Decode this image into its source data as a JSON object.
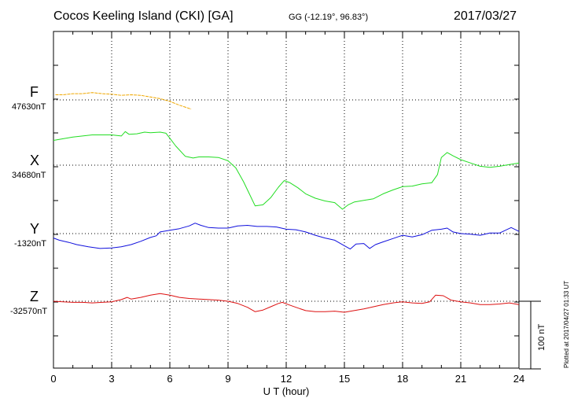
{
  "header": {
    "title": "Cocos Keeling Island (CKI)  [GA]",
    "coords": "GG (-12.19°,  96.83°)",
    "date": "2017/03/27"
  },
  "footer": {
    "plotted": "Plotted at 2017/04/27 01:33 UT"
  },
  "colors": {
    "F": "#f0a800",
    "X": "#22dd22",
    "Y": "#1010dd",
    "Z": "#dd1010",
    "grid": "#000000"
  },
  "chart_data": {
    "type": "line",
    "xlabel": "U T (hour)",
    "xlim": [
      0,
      24
    ],
    "xticks": [
      "0",
      "3",
      "6",
      "9",
      "12",
      "15",
      "18",
      "21",
      "24"
    ],
    "grid": true,
    "scale_bar": {
      "label": "100 nT",
      "nT": 100
    },
    "series": [
      {
        "name": "F",
        "baseline_label": "47630nT",
        "baseline_nT": 47630,
        "points": [
          [
            0.1,
            -5
          ],
          [
            0.5,
            -5
          ],
          [
            1,
            -7
          ],
          [
            1.5,
            -7
          ],
          [
            2,
            -9
          ],
          [
            2.5,
            -7
          ],
          [
            3,
            -6
          ],
          [
            3.5,
            -4
          ],
          [
            4,
            -5
          ],
          [
            4.5,
            -4
          ],
          [
            5,
            -1
          ],
          [
            5.5,
            2
          ],
          [
            6,
            7
          ],
          [
            6.5,
            14
          ],
          [
            7.1,
            21
          ]
        ]
      },
      {
        "name": "X",
        "baseline_label": "34680nT",
        "baseline_nT": 34680,
        "points": [
          [
            0,
            -45
          ],
          [
            0.5,
            -48
          ],
          [
            1,
            -51
          ],
          [
            1.5,
            -53
          ],
          [
            2,
            -55
          ],
          [
            2.5,
            -55
          ],
          [
            3,
            -55
          ],
          [
            3.5,
            -53
          ],
          [
            3.7,
            -61
          ],
          [
            3.9,
            -56
          ],
          [
            4.3,
            -57
          ],
          [
            4.7,
            -60
          ],
          [
            5,
            -59
          ],
          [
            5.5,
            -60
          ],
          [
            5.8,
            -58
          ],
          [
            6,
            -49
          ],
          [
            6.3,
            -35
          ],
          [
            6.8,
            -16
          ],
          [
            7.2,
            -13
          ],
          [
            7.5,
            -15
          ],
          [
            8,
            -15
          ],
          [
            8.5,
            -14
          ],
          [
            9,
            -8
          ],
          [
            9.4,
            5
          ],
          [
            9.8,
            30
          ],
          [
            10.1,
            52
          ],
          [
            10.4,
            74
          ],
          [
            10.8,
            72
          ],
          [
            11.2,
            59
          ],
          [
            11.6,
            40
          ],
          [
            11.9,
            28
          ],
          [
            12.2,
            32
          ],
          [
            12.6,
            41
          ],
          [
            13,
            52
          ],
          [
            13.5,
            60
          ],
          [
            14,
            65
          ],
          [
            14.5,
            68
          ],
          [
            14.9,
            80
          ],
          [
            15.2,
            72
          ],
          [
            15.5,
            67
          ],
          [
            16,
            64
          ],
          [
            16.5,
            61
          ],
          [
            17,
            52
          ],
          [
            17.5,
            45
          ],
          [
            18,
            39
          ],
          [
            18.5,
            38
          ],
          [
            19,
            34
          ],
          [
            19.5,
            32
          ],
          [
            19.8,
            17
          ],
          [
            20,
            -14
          ],
          [
            20.3,
            -23
          ],
          [
            20.6,
            -17
          ],
          [
            21,
            -10
          ],
          [
            21.5,
            -4
          ],
          [
            22,
            2
          ],
          [
            22.5,
            4
          ],
          [
            23,
            2
          ],
          [
            23.5,
            -1
          ],
          [
            24,
            -4
          ]
        ]
      },
      {
        "name": "Y",
        "baseline_label": "-1320nT",
        "baseline_nT": -1320,
        "points": [
          [
            0,
            8
          ],
          [
            0.3,
            12
          ],
          [
            0.8,
            16
          ],
          [
            1.2,
            20
          ],
          [
            1.8,
            24
          ],
          [
            2.4,
            27
          ],
          [
            3,
            26
          ],
          [
            3.5,
            24
          ],
          [
            4,
            20
          ],
          [
            4.5,
            14
          ],
          [
            5,
            7
          ],
          [
            5.3,
            4
          ],
          [
            5.5,
            -3
          ],
          [
            6,
            -6
          ],
          [
            6.5,
            -9
          ],
          [
            7,
            -14
          ],
          [
            7.3,
            -19
          ],
          [
            7.6,
            -15
          ],
          [
            8,
            -11
          ],
          [
            8.5,
            -10
          ],
          [
            9,
            -10
          ],
          [
            9.5,
            -14
          ],
          [
            10,
            -15
          ],
          [
            10.5,
            -13
          ],
          [
            11,
            -13
          ],
          [
            11.5,
            -12
          ],
          [
            12,
            -8
          ],
          [
            12.5,
            -7
          ],
          [
            13,
            -3
          ],
          [
            13.5,
            3
          ],
          [
            14,
            8
          ],
          [
            14.5,
            12
          ],
          [
            15,
            22
          ],
          [
            15.3,
            28
          ],
          [
            15.6,
            19
          ],
          [
            16,
            18
          ],
          [
            16.3,
            27
          ],
          [
            16.6,
            20
          ],
          [
            17,
            15
          ],
          [
            17.5,
            9
          ],
          [
            18,
            3
          ],
          [
            18.5,
            6
          ],
          [
            19,
            2
          ],
          [
            19.5,
            -6
          ],
          [
            20,
            -8
          ],
          [
            20.3,
            -10
          ],
          [
            20.6,
            -3
          ],
          [
            21,
            0
          ],
          [
            21.5,
            1
          ],
          [
            22,
            3
          ],
          [
            22.5,
            -1
          ],
          [
            23,
            -1
          ],
          [
            23.6,
            -11
          ],
          [
            24,
            -4
          ]
        ]
      },
      {
        "name": "Z",
        "baseline_label": "-32570nT",
        "baseline_nT": -32570,
        "points": [
          [
            0,
            0
          ],
          [
            0.5,
            1
          ],
          [
            1,
            2
          ],
          [
            1.5,
            2
          ],
          [
            2,
            3
          ],
          [
            2.5,
            2
          ],
          [
            3,
            1
          ],
          [
            3.5,
            -3
          ],
          [
            3.8,
            -7
          ],
          [
            4,
            -4
          ],
          [
            4.5,
            -7
          ],
          [
            5,
            -11
          ],
          [
            5.5,
            -14
          ],
          [
            6,
            -11
          ],
          [
            6.5,
            -7
          ],
          [
            7,
            -5
          ],
          [
            7.5,
            -4
          ],
          [
            8,
            -3
          ],
          [
            8.5,
            -2
          ],
          [
            9,
            0
          ],
          [
            9.5,
            4
          ],
          [
            10,
            11
          ],
          [
            10.4,
            19
          ],
          [
            10.8,
            16
          ],
          [
            11.2,
            10
          ],
          [
            11.6,
            4
          ],
          [
            11.8,
            2
          ],
          [
            12.1,
            6
          ],
          [
            12.5,
            11
          ],
          [
            13,
            17
          ],
          [
            13.5,
            19
          ],
          [
            14,
            19
          ],
          [
            14.5,
            18
          ],
          [
            15,
            20
          ],
          [
            15.5,
            17
          ],
          [
            16,
            14
          ],
          [
            16.5,
            10
          ],
          [
            17,
            6
          ],
          [
            17.5,
            3
          ],
          [
            18,
            1
          ],
          [
            18.5,
            3
          ],
          [
            19,
            4
          ],
          [
            19.4,
            1
          ],
          [
            19.7,
            -11
          ],
          [
            20.1,
            -10
          ],
          [
            20.5,
            -2
          ],
          [
            21,
            1
          ],
          [
            21.5,
            3
          ],
          [
            22,
            6
          ],
          [
            22.5,
            6
          ],
          [
            23,
            5
          ],
          [
            23.5,
            3
          ],
          [
            24,
            6
          ]
        ]
      }
    ]
  }
}
